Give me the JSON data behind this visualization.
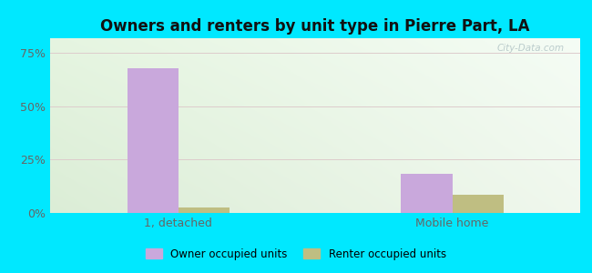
{
  "title": "Owners and renters by unit type in Pierre Part, LA",
  "categories": [
    "1, detached",
    "Mobile home"
  ],
  "owner_values": [
    68.0,
    18.5
  ],
  "renter_values": [
    2.5,
    8.5
  ],
  "owner_color": "#c9a8dc",
  "renter_color": "#bfbe82",
  "yticks": [
    0,
    25,
    50,
    75
  ],
  "ytick_labels": [
    "0%",
    "25%",
    "50%",
    "75%"
  ],
  "ylim": [
    0,
    82
  ],
  "bg_outer": "#00e8ff",
  "bg_plot_topleft": [
    0.9,
    0.96,
    0.88
  ],
  "bg_plot_topright": [
    0.96,
    0.99,
    0.96
  ],
  "bg_plot_bottomleft": [
    0.86,
    0.93,
    0.84
  ],
  "bg_plot_bottomright": [
    0.94,
    0.97,
    0.93
  ],
  "legend_owner": "Owner occupied units",
  "legend_renter": "Renter occupied units",
  "watermark": "City-Data.com",
  "bar_width": 0.28,
  "x_positions": [
    1.0,
    2.5
  ]
}
